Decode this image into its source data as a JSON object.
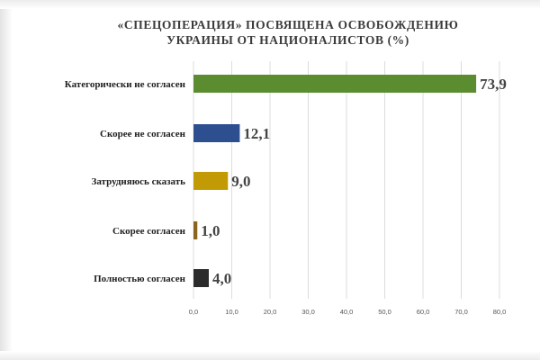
{
  "chart_data": {
    "type": "bar",
    "orientation": "horizontal",
    "title": [
      "«СПЕЦОПЕРАЦИЯ» ПОСВЯЩЕНА ОСВОБОЖДЕНИЮ",
      "УКРАИНЫ ОТ НАЦИОНАЛИСТОВ (%)"
    ],
    "categories": [
      "Категорически не согласен",
      "Скорее не согласен",
      "Затрудняюсь сказать",
      "Скорее согласен",
      "Полностью согласен"
    ],
    "values": [
      73.9,
      12.1,
      9.0,
      1.0,
      4.0
    ],
    "value_labels": [
      "73,9",
      "12,1",
      "9,0",
      "1,0",
      "4,0"
    ],
    "colors": [
      "#5b8c2f",
      "#2e4f8f",
      "#c29a05",
      "#8c6420",
      "#2b2b2b"
    ],
    "xlim": [
      0,
      80
    ],
    "x_ticks": [
      "0,0",
      "10,0",
      "20,0",
      "30,0",
      "40,0",
      "50,0",
      "60,0",
      "70,0",
      "80,0"
    ],
    "grid": "vertical",
    "xlabel": "",
    "ylabel": ""
  }
}
